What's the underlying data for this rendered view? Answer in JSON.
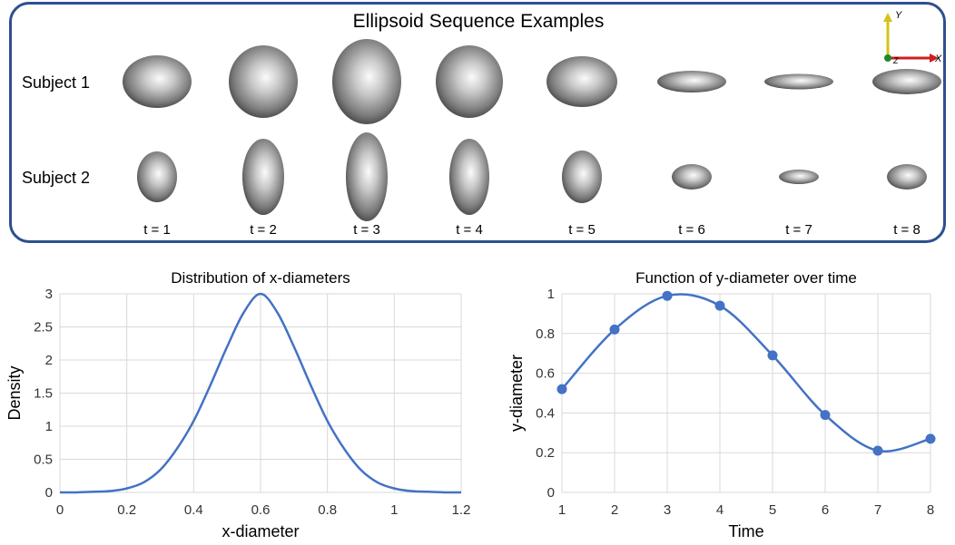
{
  "sequence": {
    "title": "Ellipsoid Sequence Examples",
    "subjects": [
      {
        "label": "Subject 1",
        "ellipsoids": [
          {
            "width": 76,
            "height": 58
          },
          {
            "width": 76,
            "height": 80
          },
          {
            "width": 76,
            "height": 94
          },
          {
            "width": 74,
            "height": 80
          },
          {
            "width": 78,
            "height": 56
          },
          {
            "width": 76,
            "height": 24
          },
          {
            "width": 76,
            "height": 17
          },
          {
            "width": 76,
            "height": 28
          }
        ]
      },
      {
        "label": "Subject 2",
        "ellipsoids": [
          {
            "width": 44,
            "height": 56
          },
          {
            "width": 46,
            "height": 84
          },
          {
            "width": 46,
            "height": 98
          },
          {
            "width": 44,
            "height": 84
          },
          {
            "width": 44,
            "height": 58
          },
          {
            "width": 44,
            "height": 28
          },
          {
            "width": 44,
            "height": 16
          },
          {
            "width": 44,
            "height": 28
          }
        ]
      }
    ],
    "time_labels": [
      "t = 1",
      "t = 2",
      "t = 3",
      "t = 4",
      "t = 5",
      "t = 6",
      "t = 7",
      "t = 8"
    ]
  },
  "axes_icon": {
    "y_label": "Y",
    "x_label": "X",
    "z_label": "Z",
    "colors": {
      "y": "#d4c21a",
      "x": "#cc1f1f",
      "z": "#1a8a2a"
    }
  },
  "chart_data": [
    {
      "type": "line",
      "title": "Distribution of x-diameters",
      "xlabel": "x-diameter",
      "ylabel": "Density",
      "xlim": [
        0,
        1.2
      ],
      "ylim": [
        0,
        3
      ],
      "xticks": [
        "0",
        "0.2",
        "0.4",
        "0.6",
        "0.8",
        "1",
        "1.2"
      ],
      "yticks": [
        "0",
        "0.5",
        "1",
        "1.5",
        "2",
        "2.5",
        "3"
      ],
      "grid": true,
      "color": "#4472c4",
      "x": [
        0,
        0.05,
        0.1,
        0.15,
        0.2,
        0.25,
        0.3,
        0.35,
        0.4,
        0.45,
        0.5,
        0.55,
        0.6,
        0.65,
        0.7,
        0.75,
        0.8,
        0.85,
        0.9,
        0.95,
        1.0,
        1.05,
        1.1,
        1.15,
        1.2
      ],
      "y": [
        0.0,
        0.0,
        0.01,
        0.02,
        0.06,
        0.15,
        0.34,
        0.66,
        1.08,
        1.62,
        2.2,
        2.72,
        3.0,
        2.72,
        2.2,
        1.62,
        1.08,
        0.66,
        0.34,
        0.15,
        0.06,
        0.02,
        0.01,
        0.0,
        0.0
      ]
    },
    {
      "type": "line",
      "title": "Function of y-diameter over time",
      "xlabel": "Time",
      "ylabel": "y-diameter",
      "xlim": [
        1,
        8
      ],
      "ylim": [
        0,
        1
      ],
      "xticks": [
        "1",
        "2",
        "3",
        "4",
        "5",
        "6",
        "7",
        "8"
      ],
      "yticks": [
        "0",
        "0.2",
        "0.4",
        "0.6",
        "0.8",
        "1"
      ],
      "grid": true,
      "color": "#4472c4",
      "markers": true,
      "x": [
        1,
        2,
        3,
        4,
        5,
        6,
        7,
        8
      ],
      "y": [
        0.52,
        0.82,
        0.99,
        0.94,
        0.69,
        0.39,
        0.21,
        0.27
      ]
    }
  ]
}
